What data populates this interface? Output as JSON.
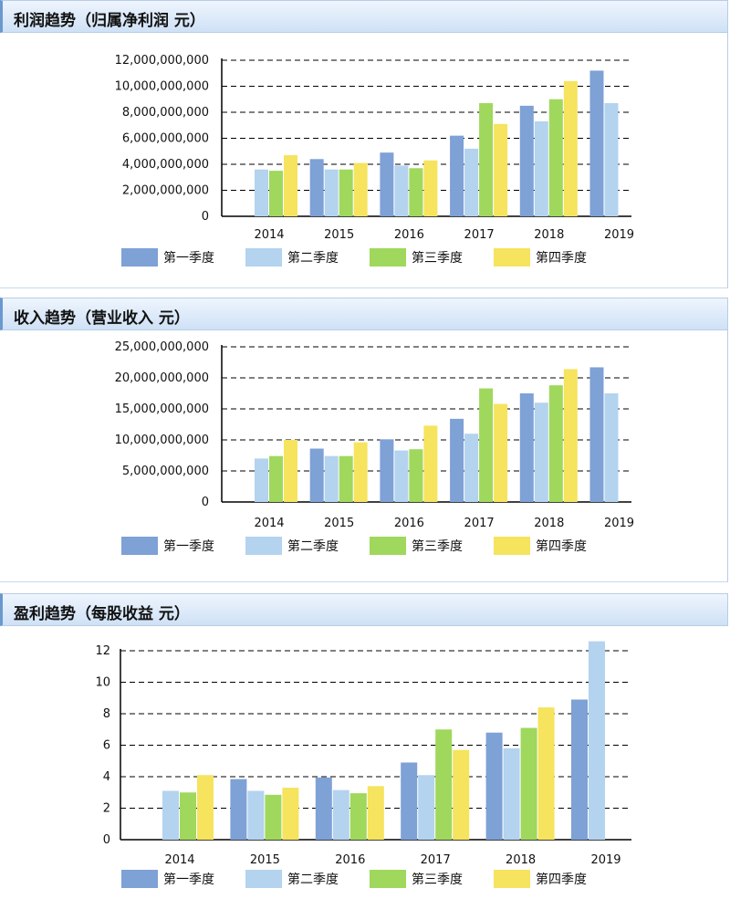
{
  "series_colors": [
    "#7ea1d6",
    "#b3d3ef",
    "#9fd85c",
    "#f6e35e"
  ],
  "chart_data": [
    {
      "type": "bar",
      "title": "利润趋势（归属净利润 元）",
      "categories": [
        "2014",
        "2015",
        "2016",
        "2017",
        "2018",
        "2019"
      ],
      "series": [
        {
          "name": "第一季度",
          "values": [
            null,
            4400000000,
            4900000000,
            6200000000,
            8500000000,
            11200000000
          ]
        },
        {
          "name": "第二季度",
          "values": [
            3600000000,
            3600000000,
            3900000000,
            5200000000,
            7300000000,
            8700000000
          ]
        },
        {
          "name": "第三季度",
          "values": [
            3500000000,
            3600000000,
            3700000000,
            8700000000,
            9000000000,
            null
          ]
        },
        {
          "name": "第四季度",
          "values": [
            4700000000,
            4100000000,
            4300000000,
            7100000000,
            10400000000,
            null
          ]
        }
      ],
      "ylim": [
        0,
        12000000000
      ],
      "yticks": [
        {
          "value": 0,
          "label": "0"
        },
        {
          "value": 2000000000,
          "label": "2,000,000,000"
        },
        {
          "value": 4000000000,
          "label": "4,000,000,000"
        },
        {
          "value": 6000000000,
          "label": "6,000,000,000"
        },
        {
          "value": 8000000000,
          "label": "8,000,000,000"
        },
        {
          "value": 10000000000,
          "label": "10,000,000,000"
        },
        {
          "value": 12000000000,
          "label": "12,000,000,000"
        }
      ],
      "grid": true,
      "legend": "bottom"
    },
    {
      "type": "bar",
      "title": "收入趋势（营业收入 元）",
      "categories": [
        "2014",
        "2015",
        "2016",
        "2017",
        "2018",
        "2019"
      ],
      "series": [
        {
          "name": "第一季度",
          "values": [
            null,
            8600000000,
            10100000000,
            13400000000,
            17500000000,
            21700000000
          ]
        },
        {
          "name": "第二季度",
          "values": [
            7000000000,
            7400000000,
            8300000000,
            11000000000,
            16000000000,
            17500000000
          ]
        },
        {
          "name": "第三季度",
          "values": [
            7400000000,
            7400000000,
            8500000000,
            18300000000,
            18800000000,
            null
          ]
        },
        {
          "name": "第四季度",
          "values": [
            10000000000,
            9600000000,
            12300000000,
            15800000000,
            21400000000,
            null
          ]
        }
      ],
      "ylim": [
        0,
        25000000000
      ],
      "yticks": [
        {
          "value": 0,
          "label": "0"
        },
        {
          "value": 5000000000,
          "label": "5,000,000,000"
        },
        {
          "value": 10000000000,
          "label": "10,000,000,000"
        },
        {
          "value": 15000000000,
          "label": "15,000,000,000"
        },
        {
          "value": 20000000000,
          "label": "20,000,000,000"
        },
        {
          "value": 25000000000,
          "label": "25,000,000,000"
        }
      ],
      "grid": true,
      "legend": "bottom"
    },
    {
      "type": "bar",
      "title": "盈利趋势（每股收益 元）",
      "categories": [
        "2014",
        "2015",
        "2016",
        "2017",
        "2018",
        "2019"
      ],
      "series": [
        {
          "name": "第一季度",
          "values": [
            null,
            3.85,
            3.95,
            4.9,
            6.8,
            8.9
          ]
        },
        {
          "name": "第二季度",
          "values": [
            3.1,
            3.1,
            3.15,
            4.1,
            5.8,
            12.6
          ]
        },
        {
          "name": "第三季度",
          "values": [
            3.0,
            2.85,
            2.95,
            7.0,
            7.1,
            null
          ]
        },
        {
          "name": "第四季度",
          "values": [
            4.1,
            3.3,
            3.4,
            5.7,
            8.4,
            null
          ]
        }
      ],
      "ylim": [
        0,
        12
      ],
      "yticks": [
        {
          "value": 0,
          "label": "0"
        },
        {
          "value": 2,
          "label": "2"
        },
        {
          "value": 4,
          "label": "4"
        },
        {
          "value": 6,
          "label": "6"
        },
        {
          "value": 8,
          "label": "8"
        },
        {
          "value": 10,
          "label": "10"
        },
        {
          "value": 12,
          "label": "12"
        }
      ],
      "grid": true,
      "legend": "bottom"
    }
  ]
}
